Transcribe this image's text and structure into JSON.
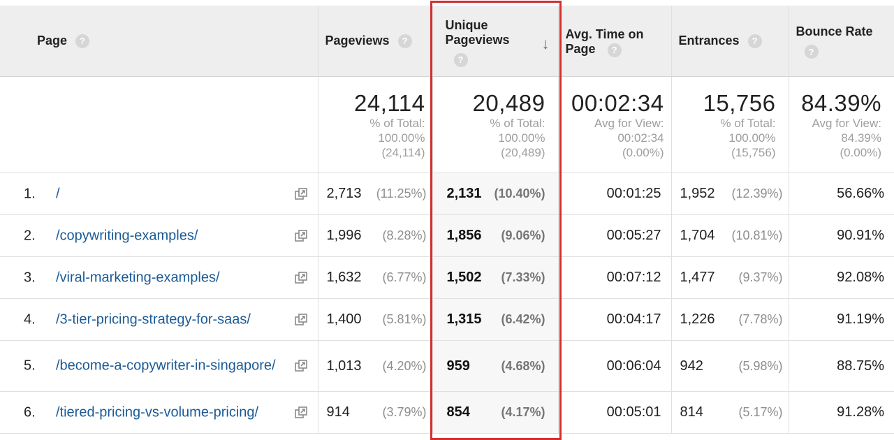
{
  "headers": {
    "page": "Page",
    "pageviews": "Pageviews",
    "unique_pageviews_line1": "Unique",
    "unique_pageviews_line2": "Pageviews",
    "avg_time": "Avg. Time on Page",
    "entrances": "Entrances",
    "bounce_rate": "Bounce Rate",
    "help_glyph": "?",
    "sort_glyph": "↓"
  },
  "totals": {
    "pageviews": {
      "value": "24,114",
      "l1": "% of Total:",
      "l2": "100.00%",
      "l3": "(24,114)"
    },
    "unique_pageviews": {
      "value": "20,489",
      "l1": "% of Total:",
      "l2": "100.00%",
      "l3": "(20,489)"
    },
    "avg_time": {
      "value": "00:02:34",
      "l1": "Avg for View:",
      "l2": "00:02:34",
      "l3": "(0.00%)"
    },
    "entrances": {
      "value": "15,756",
      "l1": "% of Total:",
      "l2": "100.00%",
      "l3": "(15,756)"
    },
    "bounce_rate": {
      "value": "84.39%",
      "l1": "Avg for View:",
      "l2": "84.39%",
      "l3": "(0.00%)"
    }
  },
  "rows": [
    {
      "rank": "1.",
      "page": "/",
      "pageviews": "2,713",
      "pageviews_pct": "(11.25%)",
      "unique": "2,131",
      "unique_pct": "(10.40%)",
      "time": "00:01:25",
      "entrances": "1,952",
      "entrances_pct": "(12.39%)",
      "bounce": "56.66%"
    },
    {
      "rank": "2.",
      "page": "/copywriting-examples/",
      "pageviews": "1,996",
      "pageviews_pct": "(8.28%)",
      "unique": "1,856",
      "unique_pct": "(9.06%)",
      "time": "00:05:27",
      "entrances": "1,704",
      "entrances_pct": "(10.81%)",
      "bounce": "90.91%"
    },
    {
      "rank": "3.",
      "page": "/viral-marketing-examples/",
      "pageviews": "1,632",
      "pageviews_pct": "(6.77%)",
      "unique": "1,502",
      "unique_pct": "(7.33%)",
      "time": "00:07:12",
      "entrances": "1,477",
      "entrances_pct": "(9.37%)",
      "bounce": "92.08%"
    },
    {
      "rank": "4.",
      "page": "/3-tier-pricing-strategy-for-saas/",
      "pageviews": "1,400",
      "pageviews_pct": "(5.81%)",
      "unique": "1,315",
      "unique_pct": "(6.42%)",
      "time": "00:04:17",
      "entrances": "1,226",
      "entrances_pct": "(7.78%)",
      "bounce": "91.19%"
    },
    {
      "rank": "5.",
      "page": "/become-a-copywriter-in-singapore/",
      "pageviews": "1,013",
      "pageviews_pct": "(4.20%)",
      "unique": "959",
      "unique_pct": "(4.68%)",
      "time": "00:06:04",
      "entrances": "942",
      "entrances_pct": "(5.98%)",
      "bounce": "88.75%"
    },
    {
      "rank": "6.",
      "page": "/tiered-pricing-vs-volume-pricing/",
      "pageviews": "914",
      "pageviews_pct": "(3.79%)",
      "unique": "854",
      "unique_pct": "(4.17%)",
      "time": "00:05:01",
      "entrances": "814",
      "entrances_pct": "(5.17%)",
      "bounce": "91.28%"
    }
  ],
  "colors": {
    "link": "#1a5a96",
    "highlight": "#d32f2f",
    "header_bg": "#eeeeee"
  },
  "icons": {
    "help": "question-circle-icon",
    "sort": "arrow-down-icon",
    "external": "open-in-new-window-icon"
  }
}
